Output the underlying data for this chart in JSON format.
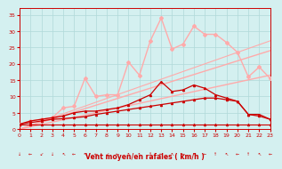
{
  "background_color": "#d4f0f0",
  "grid_color": "#b0d8d8",
  "xlabel": "Vent moyen/en rafales ( km/h )",
  "xlabel_color": "#cc0000",
  "tick_color": "#cc0000",
  "ylim": [
    0,
    37
  ],
  "xlim": [
    0,
    23
  ],
  "yticks": [
    0,
    5,
    10,
    15,
    20,
    25,
    30,
    35
  ],
  "xticks": [
    0,
    1,
    2,
    3,
    4,
    5,
    6,
    7,
    8,
    9,
    10,
    11,
    12,
    13,
    14,
    15,
    16,
    17,
    18,
    19,
    20,
    21,
    22,
    23
  ],
  "lines": [
    {
      "note": "flat dark red line near y=1.5",
      "x": [
        0,
        1,
        2,
        3,
        4,
        5,
        6,
        7,
        8,
        9,
        10,
        11,
        12,
        13,
        14,
        15,
        16,
        17,
        18,
        19,
        20,
        21,
        22,
        23
      ],
      "y": [
        1.5,
        1.5,
        1.5,
        1.5,
        1.5,
        1.5,
        1.5,
        1.5,
        1.5,
        1.5,
        1.5,
        1.5,
        1.5,
        1.5,
        1.5,
        1.5,
        1.5,
        1.5,
        1.5,
        1.5,
        1.5,
        1.5,
        1.5,
        1.5
      ],
      "color": "#cc0000",
      "linewidth": 0.8,
      "marker": "^",
      "markersize": 1.5,
      "zorder": 4
    },
    {
      "note": "dark red line rising gently then dropping",
      "x": [
        0,
        1,
        2,
        3,
        4,
        5,
        6,
        7,
        8,
        9,
        10,
        11,
        12,
        13,
        14,
        15,
        16,
        17,
        18,
        19,
        20,
        21,
        22,
        23
      ],
      "y": [
        1.5,
        2.0,
        2.5,
        3.0,
        3.2,
        3.5,
        3.8,
        4.5,
        5.0,
        5.5,
        6.0,
        6.5,
        7.0,
        7.5,
        8.0,
        8.5,
        9.0,
        9.5,
        9.5,
        9.0,
        8.5,
        4.5,
        4.0,
        3.0
      ],
      "color": "#cc0000",
      "linewidth": 0.9,
      "marker": "^",
      "markersize": 1.5,
      "zorder": 4
    },
    {
      "note": "dark red line rising more then dropping sharply",
      "x": [
        0,
        1,
        2,
        3,
        4,
        5,
        6,
        7,
        8,
        9,
        10,
        11,
        12,
        13,
        14,
        15,
        16,
        17,
        18,
        19,
        20,
        21,
        22,
        23
      ],
      "y": [
        1.5,
        2.5,
        3.0,
        3.5,
        4.0,
        5.0,
        5.5,
        5.5,
        6.0,
        6.5,
        7.5,
        9.0,
        10.5,
        14.5,
        11.5,
        12.0,
        13.5,
        12.5,
        10.5,
        9.5,
        8.5,
        4.5,
        4.5,
        3.0
      ],
      "color": "#cc0000",
      "linewidth": 0.9,
      "marker": "^",
      "markersize": 1.5,
      "zorder": 4
    },
    {
      "note": "pink diagonal straight line 1 - shallow slope",
      "x": [
        0,
        23
      ],
      "y": [
        0,
        16.5
      ],
      "color": "#ffaaaa",
      "linewidth": 1.0,
      "marker": null,
      "markersize": 0,
      "zorder": 2
    },
    {
      "note": "pink diagonal straight line 2 - medium slope",
      "x": [
        0,
        23
      ],
      "y": [
        0,
        24.0
      ],
      "color": "#ffaaaa",
      "linewidth": 1.0,
      "marker": null,
      "markersize": 0,
      "zorder": 2
    },
    {
      "note": "pink diagonal straight line 3 - steeper slope",
      "x": [
        0,
        23
      ],
      "y": [
        0,
        27.0
      ],
      "color": "#ffaaaa",
      "linewidth": 0.8,
      "marker": null,
      "markersize": 0,
      "zorder": 2
    },
    {
      "note": "pink wiggly line with diamonds - rafales peak",
      "x": [
        0,
        1,
        2,
        3,
        4,
        5,
        6,
        7,
        8,
        9,
        10,
        11,
        12,
        13,
        14,
        15,
        16,
        17,
        18,
        19,
        20,
        21,
        22,
        23
      ],
      "y": [
        1.5,
        2.5,
        3.0,
        3.5,
        6.5,
        7.0,
        15.5,
        10.0,
        10.5,
        10.5,
        20.5,
        16.5,
        27.0,
        34.0,
        24.5,
        26.0,
        31.5,
        29.0,
        29.0,
        26.5,
        23.5,
        16.0,
        19.0,
        15.5
      ],
      "color": "#ffaaaa",
      "linewidth": 1.0,
      "marker": "D",
      "markersize": 2,
      "zorder": 3
    }
  ],
  "wind_symbols": [
    "↓",
    "←",
    "↙",
    "↓",
    "↖",
    "←",
    "↖",
    "←",
    "↙",
    "←",
    "↖",
    "↖",
    "↑",
    "←",
    "↖",
    "←",
    "↖",
    "←",
    "↑",
    "↖",
    "←",
    "↑",
    "↖",
    "←"
  ]
}
